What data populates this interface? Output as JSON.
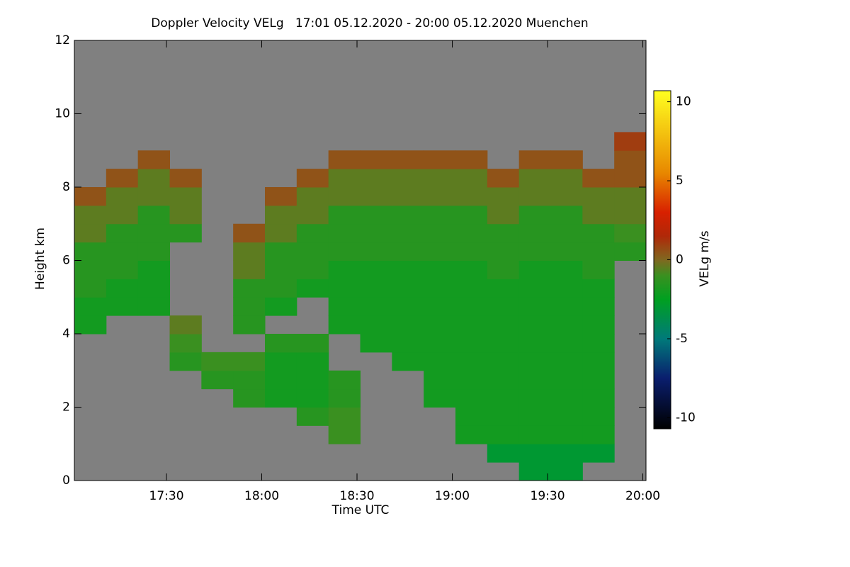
{
  "chart_data": {
    "type": "heatmap",
    "title": "Doppler Velocity VELg   17:01 05.12.2020 - 20:00 05.12.2020 Muenchen",
    "x_label": "Time UTC",
    "y_label": "Height km",
    "colorbar_label": "VELg m/s",
    "xlim": [
      1021,
      1201
    ],
    "xticks": [
      {
        "value": 1050,
        "label": "17:30"
      },
      {
        "value": 1080,
        "label": "18:00"
      },
      {
        "value": 1110,
        "label": "18:30"
      },
      {
        "value": 1140,
        "label": "19:00"
      },
      {
        "value": 1170,
        "label": "19:30"
      },
      {
        "value": 1200,
        "label": "20:00"
      }
    ],
    "ylim": [
      0,
      12
    ],
    "yticks": [
      0,
      2,
      4,
      6,
      8,
      10,
      12
    ],
    "zlim": [
      -10.7,
      10.7
    ],
    "zticks": [
      -10,
      -5,
      0,
      5,
      10
    ],
    "nodata_color": "#808080",
    "colorscale": [
      [
        -10.7,
        "#000000"
      ],
      [
        -7.5,
        "#0a1e6e"
      ],
      [
        -5,
        "#007a7a"
      ],
      [
        -2.5,
        "#00a020"
      ],
      [
        -1,
        "#3a9020"
      ],
      [
        0,
        "#806820"
      ],
      [
        1.5,
        "#b02808"
      ],
      [
        3,
        "#d82000"
      ],
      [
        5.5,
        "#e88800"
      ],
      [
        10.7,
        "#ffff20"
      ]
    ],
    "x": [
      1026,
      1036,
      1046,
      1056,
      1066,
      1076,
      1086,
      1096,
      1106,
      1116,
      1126,
      1136,
      1146,
      1156,
      1166,
      1176,
      1186,
      1196
    ],
    "y": [
      0.25,
      0.75,
      1.25,
      1.75,
      2.25,
      2.75,
      3.25,
      3.75,
      4.25,
      4.75,
      5.25,
      5.75,
      6.25,
      6.75,
      7.25,
      7.75,
      8.25,
      8.75,
      9.25,
      9.75,
      10.25,
      10.75,
      11.25,
      11.75
    ],
    "z": [
      [
        null,
        null,
        null,
        null,
        null,
        null,
        null,
        null,
        null,
        null,
        null,
        null,
        null,
        null,
        -3,
        -3,
        null,
        null
      ],
      [
        null,
        null,
        null,
        null,
        null,
        null,
        null,
        null,
        null,
        null,
        null,
        null,
        null,
        -3,
        -3,
        -3,
        -3,
        null
      ],
      [
        null,
        null,
        null,
        null,
        null,
        null,
        null,
        null,
        -1,
        null,
        null,
        null,
        -2,
        -2,
        -2,
        -2,
        -2,
        null
      ],
      [
        null,
        null,
        null,
        null,
        null,
        null,
        null,
        -1.5,
        -1,
        null,
        null,
        null,
        -2,
        -2,
        -2,
        -2,
        -2,
        null
      ],
      [
        null,
        null,
        null,
        null,
        null,
        -1.5,
        -2,
        -2,
        -1.5,
        null,
        null,
        -2,
        -2,
        -2,
        -2,
        -2,
        -2,
        null
      ],
      [
        null,
        null,
        null,
        null,
        -1.5,
        -1.5,
        -2,
        -2,
        -1.5,
        null,
        null,
        -2,
        -2,
        -2,
        -2,
        -2,
        -2,
        null
      ],
      [
        null,
        null,
        null,
        -1.5,
        -1,
        -1,
        -2,
        -2,
        null,
        null,
        -2,
        -2,
        -2,
        -2,
        -2,
        -2,
        -2,
        null
      ],
      [
        null,
        null,
        null,
        -1,
        null,
        null,
        -1.5,
        -1.5,
        null,
        -2,
        -2,
        -2,
        -2,
        -2,
        -2,
        -2,
        -2,
        null
      ],
      [
        -2,
        null,
        null,
        -0.5,
        null,
        -1.5,
        null,
        null,
        -2,
        -2,
        -2,
        -2,
        -2,
        -2,
        -2,
        -2,
        -2,
        null
      ],
      [
        -2,
        -2,
        -2,
        null,
        null,
        -1.5,
        -2,
        null,
        -2,
        -2,
        -2,
        -2,
        -2,
        -2,
        -2,
        -2,
        -2,
        null
      ],
      [
        -1.5,
        -2,
        -2,
        null,
        null,
        -1.5,
        -1.5,
        -2,
        -2,
        -2,
        -2,
        -2,
        -2,
        -2,
        -2,
        -2,
        -2,
        null
      ],
      [
        -1.5,
        -1.5,
        -2,
        null,
        null,
        -0.5,
        -1.5,
        -1.5,
        -2,
        -2,
        -2,
        -2,
        -2,
        -1.5,
        -2,
        -2,
        -1.5,
        null
      ],
      [
        -1.5,
        -1.5,
        -1.5,
        null,
        null,
        -0.5,
        -1.5,
        -1.5,
        -1.5,
        -1.5,
        -1.5,
        -1.5,
        -1.5,
        -1.5,
        -1.5,
        -1.5,
        -1.5,
        -1.5
      ],
      [
        -0.5,
        -1.5,
        -1.5,
        -1.5,
        null,
        0.5,
        -0.5,
        -1.5,
        -1.5,
        -1.5,
        -1.5,
        -1.5,
        -1.5,
        -1.5,
        -1.5,
        -1.5,
        -1.5,
        -1
      ],
      [
        -0.5,
        -0.5,
        -1.5,
        -0.5,
        null,
        null,
        -0.5,
        -0.5,
        -1.5,
        -1.5,
        -1.5,
        -1.5,
        -1.5,
        -0.5,
        -1.5,
        -1.5,
        -0.5,
        -0.5
      ],
      [
        0.5,
        -0.5,
        -0.5,
        -0.5,
        null,
        null,
        0.5,
        -0.5,
        -0.5,
        -0.5,
        -0.5,
        -0.5,
        -0.5,
        -0.5,
        -0.5,
        -0.5,
        -0.5,
        -0.5
      ],
      [
        null,
        0.5,
        -0.5,
        0.5,
        null,
        null,
        null,
        0.5,
        -0.5,
        -0.5,
        -0.5,
        -0.5,
        -0.5,
        0.5,
        -0.5,
        -0.5,
        0.5,
        0.5
      ],
      [
        null,
        null,
        0.5,
        null,
        null,
        null,
        null,
        null,
        0.5,
        0.5,
        0.5,
        0.5,
        0.5,
        null,
        0.5,
        0.5,
        null,
        0.5
      ],
      [
        null,
        null,
        null,
        null,
        null,
        null,
        null,
        null,
        null,
        null,
        null,
        null,
        null,
        null,
        null,
        null,
        null,
        1
      ],
      [
        null,
        null,
        null,
        null,
        null,
        null,
        null,
        null,
        null,
        null,
        null,
        null,
        null,
        null,
        null,
        null,
        null,
        null
      ],
      [
        null,
        null,
        null,
        null,
        null,
        null,
        null,
        null,
        null,
        null,
        null,
        null,
        null,
        null,
        null,
        null,
        null,
        null
      ],
      [
        null,
        null,
        null,
        null,
        null,
        null,
        null,
        null,
        null,
        null,
        null,
        null,
        null,
        null,
        null,
        null,
        null,
        null
      ],
      [
        null,
        null,
        null,
        null,
        null,
        null,
        null,
        null,
        null,
        null,
        null,
        null,
        null,
        null,
        null,
        null,
        null,
        null
      ],
      [
        null,
        null,
        null,
        null,
        null,
        null,
        null,
        null,
        null,
        null,
        null,
        null,
        null,
        null,
        null,
        null,
        null,
        null
      ]
    ]
  }
}
